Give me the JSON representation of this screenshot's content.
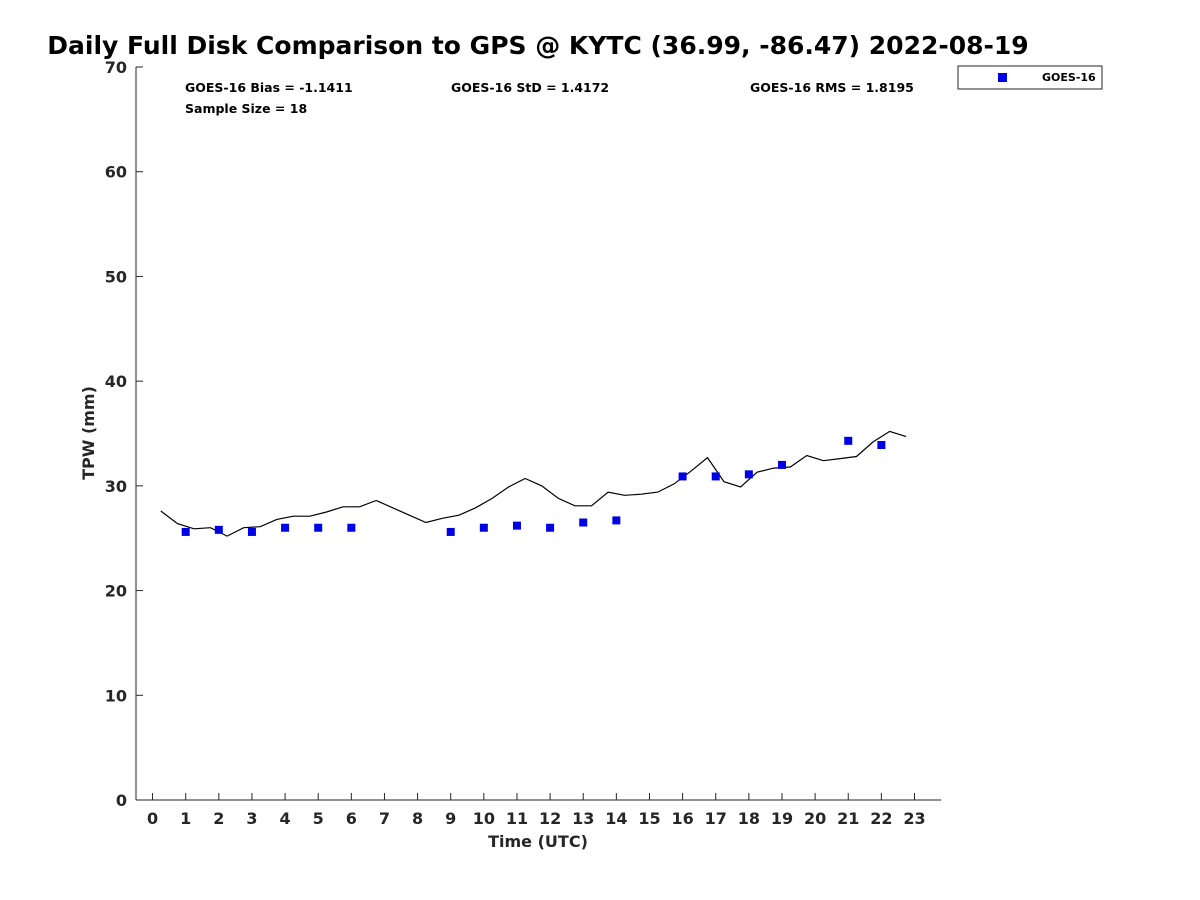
{
  "chart_data": {
    "type": "scatter",
    "title": "Daily Full Disk Comparison to GPS @ KYTC (36.99, -86.47) 2022-08-19",
    "xlabel": "Time (UTC)",
    "ylabel": "TPW (mm)",
    "xlim": [
      -0.5,
      23.8
    ],
    "ylim": [
      0,
      70
    ],
    "x_ticks": [
      0,
      1,
      2,
      3,
      4,
      5,
      6,
      7,
      8,
      9,
      10,
      11,
      12,
      13,
      14,
      15,
      16,
      17,
      18,
      19,
      20,
      21,
      22,
      23
    ],
    "x_tick_labels": [
      "0",
      "1",
      "2",
      "3",
      "4",
      "5",
      "6",
      "7",
      "8",
      "9",
      "10",
      "11",
      "12",
      "13",
      "14",
      "15",
      "16",
      "17",
      "18",
      "19",
      "20",
      "21",
      "22",
      "23"
    ],
    "y_ticks": [
      0,
      10,
      20,
      30,
      40,
      50,
      60,
      70
    ],
    "y_tick_labels": [
      "0",
      "10",
      "20",
      "30",
      "40",
      "50",
      "60",
      "70"
    ],
    "grid": false,
    "legend_position": "top-right, outside plot",
    "stats": {
      "bias": "GOES-16 Bias = -1.1411",
      "std": "GOES-16 StD = 1.4172",
      "rms": "GOES-16 RMS = 1.8195",
      "sample_size": "Sample Size = 18"
    },
    "series": [
      {
        "name": "GOES-16",
        "kind": "scatter",
        "marker": "square",
        "color": "#0000e6",
        "x": [
          1,
          2,
          3,
          4,
          5,
          6,
          9,
          10,
          11,
          12,
          13,
          14,
          16,
          17,
          18,
          19,
          21,
          22
        ],
        "y": [
          25.6,
          25.8,
          25.6,
          26.0,
          26.0,
          26.0,
          25.6,
          26.0,
          26.2,
          26.0,
          26.5,
          26.7,
          30.9,
          30.9,
          31.1,
          32.0,
          34.3,
          33.9
        ]
      },
      {
        "kind": "line",
        "color": "#000000",
        "x": [
          0.25,
          0.75,
          1.25,
          1.75,
          2.25,
          2.75,
          3.25,
          3.75,
          4.25,
          4.75,
          5.25,
          5.75,
          6.25,
          6.75,
          7.25,
          7.75,
          8.25,
          8.75,
          9.25,
          9.75,
          10.25,
          10.75,
          11.25,
          11.75,
          12.25,
          12.75,
          13.25,
          13.75,
          14.25,
          14.75,
          15.25,
          15.75,
          16.25,
          16.75,
          17.25,
          17.75,
          18.25,
          18.75,
          19.25,
          19.75,
          20.25,
          20.75,
          21.25,
          21.75,
          22.25,
          22.75
        ],
        "y": [
          27.6,
          26.4,
          25.9,
          26.0,
          25.2,
          26.0,
          26.1,
          26.8,
          27.1,
          27.1,
          27.5,
          28.0,
          28.0,
          28.6,
          27.9,
          27.2,
          26.5,
          26.9,
          27.2,
          27.9,
          28.8,
          29.9,
          30.7,
          30.0,
          28.8,
          28.1,
          28.1,
          29.4,
          29.1,
          29.2,
          29.4,
          30.2,
          31.4,
          32.7,
          30.4,
          29.9,
          31.3,
          31.7,
          31.8,
          32.9,
          32.4,
          32.6,
          32.8,
          34.2,
          35.2,
          34.7
        ]
      }
    ]
  }
}
